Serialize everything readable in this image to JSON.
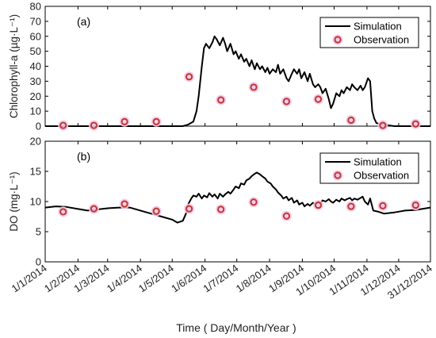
{
  "chart_data": [
    {
      "type": "line",
      "panel_label": "(a)",
      "ylabel": "Chlorophyll-a (µg·L⁻¹)",
      "ylim": [
        0,
        80
      ],
      "yticks": [
        0,
        10,
        20,
        30,
        40,
        50,
        60,
        70,
        80
      ],
      "legend": {
        "position": "top-right",
        "entries": [
          "Simulation",
          "Observation"
        ]
      },
      "series": [
        {
          "name": "Simulation",
          "style": "line",
          "color": "#000000",
          "x": [
            0,
            20,
            40,
            60,
            80,
            100,
            120,
            130,
            135,
            140,
            143,
            145,
            148,
            150,
            152,
            155,
            158,
            160,
            162,
            165,
            168,
            170,
            172,
            175,
            178,
            180,
            183,
            185,
            188,
            190,
            193,
            195,
            198,
            200,
            203,
            205,
            208,
            210,
            212,
            215,
            218,
            220,
            222,
            225,
            228,
            230,
            233,
            235,
            238,
            240,
            242,
            245,
            248,
            250,
            253,
            255,
            258,
            260,
            262,
            265,
            268,
            270,
            272,
            275,
            278,
            280,
            282,
            285,
            288,
            290,
            292,
            295,
            298,
            300,
            302,
            305,
            307,
            309,
            311,
            313,
            320,
            330,
            345,
            364
          ],
          "y": [
            0,
            0,
            0,
            0,
            0,
            0,
            0,
            0,
            1,
            3,
            10,
            20,
            40,
            52,
            55,
            52,
            56,
            60,
            58,
            54,
            59,
            55,
            50,
            55,
            48,
            50,
            45,
            48,
            43,
            45,
            40,
            44,
            38,
            42,
            38,
            40,
            36,
            39,
            35,
            38,
            36,
            41,
            35,
            38,
            32,
            30,
            35,
            38,
            35,
            38,
            32,
            36,
            30,
            35,
            28,
            26,
            28,
            26,
            22,
            25,
            18,
            12,
            15,
            22,
            20,
            24,
            22,
            26,
            24,
            28,
            26,
            24,
            27,
            24,
            26,
            32,
            30,
            10,
            5,
            2,
            1,
            0,
            0,
            0
          ]
        },
        {
          "name": "Observation",
          "style": "marker",
          "color": "#c0392b",
          "x": [
            17,
            46,
            75,
            105,
            136,
            166,
            197,
            228,
            258,
            289,
            319,
            350
          ],
          "y": [
            0.5,
            0.5,
            3,
            3,
            33,
            17.5,
            26,
            16.5,
            18,
            4,
            0.5,
            1.5
          ]
        }
      ]
    },
    {
      "type": "line",
      "panel_label": "(b)",
      "ylabel": "DO (mg·L⁻¹)",
      "ylim": [
        0,
        20
      ],
      "yticks": [
        0,
        5,
        10,
        15,
        20
      ],
      "legend": {
        "position": "top-right",
        "entries": [
          "Simulation",
          "Observation"
        ]
      },
      "series": [
        {
          "name": "Simulation",
          "style": "line",
          "color": "#000000",
          "x": [
            0,
            10,
            20,
            30,
            40,
            50,
            60,
            70,
            80,
            90,
            100,
            110,
            120,
            125,
            130,
            133,
            135,
            138,
            140,
            143,
            145,
            148,
            150,
            153,
            155,
            158,
            160,
            163,
            165,
            168,
            170,
            173,
            175,
            178,
            180,
            183,
            185,
            188,
            190,
            193,
            195,
            198,
            200,
            203,
            205,
            208,
            210,
            213,
            215,
            218,
            220,
            223,
            225,
            228,
            230,
            233,
            235,
            238,
            240,
            243,
            245,
            248,
            250,
            253,
            255,
            258,
            260,
            262,
            265,
            268,
            270,
            272,
            275,
            278,
            280,
            283,
            285,
            288,
            290,
            292,
            295,
            298,
            300,
            302,
            305,
            307,
            310,
            315,
            320,
            330,
            340,
            350,
            364
          ],
          "y": [
            9.0,
            9.2,
            9.1,
            8.8,
            8.5,
            8.7,
            8.9,
            9.0,
            9.0,
            8.5,
            8.0,
            7.5,
            7.0,
            6.5,
            6.8,
            8.0,
            9.5,
            10.5,
            11.0,
            10.8,
            11.3,
            10.5,
            11.0,
            10.7,
            11.4,
            10.8,
            11.2,
            10.5,
            11.3,
            10.8,
            11.2,
            11.6,
            11.3,
            12.0,
            12.5,
            12.2,
            13.0,
            12.8,
            13.5,
            13.8,
            14.2,
            14.6,
            14.8,
            14.5,
            14.2,
            13.8,
            13.3,
            13.0,
            12.5,
            12.0,
            11.5,
            11.0,
            10.5,
            10.8,
            10.2,
            10.6,
            9.8,
            10.2,
            9.5,
            9.8,
            9.2,
            9.6,
            9.3,
            9.8,
            9.5,
            10.0,
            9.6,
            10.2,
            10.0,
            10.4,
            10.0,
            9.8,
            10.3,
            10.0,
            10.5,
            10.2,
            10.4,
            10.6,
            10.2,
            10.5,
            10.3,
            10.6,
            10.8,
            10.0,
            9.5,
            10.5,
            8.5,
            8.3,
            8.0,
            8.2,
            8.5,
            8.6,
            9.0
          ]
        },
        {
          "name": "Observation",
          "style": "marker",
          "color": "#c0392b",
          "x": [
            17,
            46,
            75,
            105,
            136,
            166,
            197,
            228,
            258,
            289,
            319,
            350
          ],
          "y": [
            8.3,
            8.8,
            9.6,
            8.4,
            8.8,
            8.7,
            9.9,
            7.6,
            9.4,
            9.2,
            9.3,
            9.4
          ]
        }
      ]
    }
  ],
  "x_axis": {
    "label": "Time ( Day/Month/Year )",
    "xlim": [
      0,
      364
    ],
    "tick_positions": [
      0,
      31,
      59,
      90,
      120,
      151,
      181,
      212,
      243,
      273,
      304,
      334,
      364
    ],
    "tick_labels": [
      "1/1/2014",
      "1/2/2014",
      "1/3/2014",
      "1/4/2014",
      "1/5/2014",
      "1/6/2014",
      "1/7/2014",
      "1/8/2014",
      "1/9/2014",
      "1/10/2014",
      "1/11/2014",
      "1/12/2014",
      "31/12/2014"
    ]
  }
}
